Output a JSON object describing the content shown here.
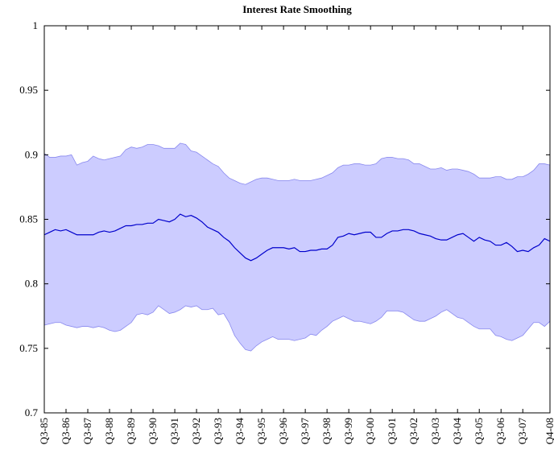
{
  "chart_data": {
    "type": "band-line",
    "title": "Interest Rate Smoothing",
    "categories": [
      "Q3-85",
      null,
      null,
      null,
      "Q3-86",
      null,
      null,
      null,
      "Q3-87",
      null,
      null,
      null,
      "Q3-88",
      null,
      null,
      null,
      "Q3-89",
      null,
      null,
      null,
      "Q3-90",
      null,
      null,
      null,
      "Q3-91",
      null,
      null,
      null,
      "Q3-92",
      null,
      null,
      null,
      "Q3-93",
      null,
      null,
      null,
      "Q3-94",
      null,
      null,
      null,
      "Q3-95",
      null,
      null,
      null,
      "Q3-96",
      null,
      null,
      null,
      "Q3-97",
      null,
      null,
      null,
      "Q3-98",
      null,
      null,
      null,
      "Q3-99",
      null,
      null,
      null,
      "Q3-00",
      null,
      null,
      null,
      "Q3-01",
      null,
      null,
      null,
      "Q3-02",
      null,
      null,
      null,
      "Q3-03",
      null,
      null,
      null,
      "Q3-04",
      null,
      null,
      null,
      "Q3-05",
      null,
      null,
      null,
      "Q3-06",
      null,
      null,
      null,
      "Q3-07",
      null,
      null,
      null,
      null,
      "Q4-08"
    ],
    "series": [
      {
        "role": "median",
        "color": "#0000cc",
        "values": [
          0.838,
          0.84,
          0.842,
          0.841,
          0.842,
          0.84,
          0.838,
          0.838,
          0.838,
          0.838,
          0.84,
          0.841,
          0.84,
          0.841,
          0.843,
          0.845,
          0.845,
          0.846,
          0.846,
          0.847,
          0.847,
          0.85,
          0.849,
          0.848,
          0.85,
          0.854,
          0.852,
          0.853,
          0.851,
          0.848,
          0.844,
          0.842,
          0.84,
          0.836,
          0.833,
          0.828,
          0.824,
          0.82,
          0.818,
          0.82,
          0.823,
          0.826,
          0.828,
          0.828,
          0.828,
          0.827,
          0.828,
          0.825,
          0.825,
          0.826,
          0.826,
          0.827,
          0.827,
          0.83,
          0.836,
          0.837,
          0.839,
          0.838,
          0.839,
          0.84,
          0.84,
          0.836,
          0.836,
          0.839,
          0.841,
          0.841,
          0.842,
          0.842,
          0.841,
          0.839,
          0.838,
          0.837,
          0.835,
          0.834,
          0.834,
          0.836,
          0.838,
          0.839,
          0.836,
          0.833,
          0.836,
          0.834,
          0.833,
          0.83,
          0.83,
          0.832,
          0.829,
          0.825,
          0.826,
          0.825,
          0.828,
          0.83,
          0.835,
          0.833
        ]
      },
      {
        "role": "upper",
        "color": "#8888ee",
        "values": [
          0.901,
          0.898,
          0.898,
          0.899,
          0.899,
          0.9,
          0.892,
          0.894,
          0.895,
          0.899,
          0.897,
          0.896,
          0.897,
          0.898,
          0.899,
          0.904,
          0.906,
          0.905,
          0.906,
          0.908,
          0.908,
          0.907,
          0.905,
          0.905,
          0.905,
          0.909,
          0.908,
          0.903,
          0.902,
          0.899,
          0.896,
          0.893,
          0.891,
          0.886,
          0.882,
          0.88,
          0.878,
          0.877,
          0.879,
          0.881,
          0.882,
          0.882,
          0.881,
          0.88,
          0.88,
          0.88,
          0.881,
          0.88,
          0.88,
          0.88,
          0.881,
          0.882,
          0.884,
          0.886,
          0.89,
          0.892,
          0.892,
          0.893,
          0.893,
          0.892,
          0.892,
          0.893,
          0.897,
          0.898,
          0.898,
          0.897,
          0.897,
          0.896,
          0.893,
          0.893,
          0.891,
          0.889,
          0.889,
          0.89,
          0.888,
          0.889,
          0.889,
          0.888,
          0.887,
          0.885,
          0.882,
          0.882,
          0.882,
          0.883,
          0.883,
          0.881,
          0.881,
          0.883,
          0.883,
          0.885,
          0.888,
          0.893,
          0.893,
          0.892
        ]
      },
      {
        "role": "lower",
        "color": "#8888ee",
        "values": [
          0.768,
          0.769,
          0.77,
          0.77,
          0.768,
          0.767,
          0.766,
          0.767,
          0.767,
          0.766,
          0.767,
          0.766,
          0.764,
          0.763,
          0.764,
          0.767,
          0.77,
          0.776,
          0.777,
          0.776,
          0.778,
          0.783,
          0.78,
          0.777,
          0.778,
          0.78,
          0.783,
          0.782,
          0.783,
          0.78,
          0.78,
          0.781,
          0.776,
          0.777,
          0.77,
          0.76,
          0.754,
          0.749,
          0.748,
          0.752,
          0.755,
          0.757,
          0.759,
          0.757,
          0.757,
          0.757,
          0.756,
          0.757,
          0.758,
          0.761,
          0.76,
          0.764,
          0.767,
          0.771,
          0.773,
          0.775,
          0.773,
          0.771,
          0.771,
          0.77,
          0.769,
          0.771,
          0.774,
          0.779,
          0.779,
          0.779,
          0.778,
          0.775,
          0.772,
          0.771,
          0.771,
          0.773,
          0.775,
          0.778,
          0.78,
          0.777,
          0.774,
          0.773,
          0.77,
          0.767,
          0.765,
          0.765,
          0.765,
          0.76,
          0.759,
          0.757,
          0.756,
          0.758,
          0.76,
          0.765,
          0.77,
          0.77,
          0.767,
          0.771
        ]
      }
    ],
    "band_color": "#ccccff",
    "ylim": [
      0.7,
      1
    ],
    "yticks": [
      0.7,
      0.75,
      0.8,
      0.85,
      0.9,
      0.95,
      1
    ]
  }
}
